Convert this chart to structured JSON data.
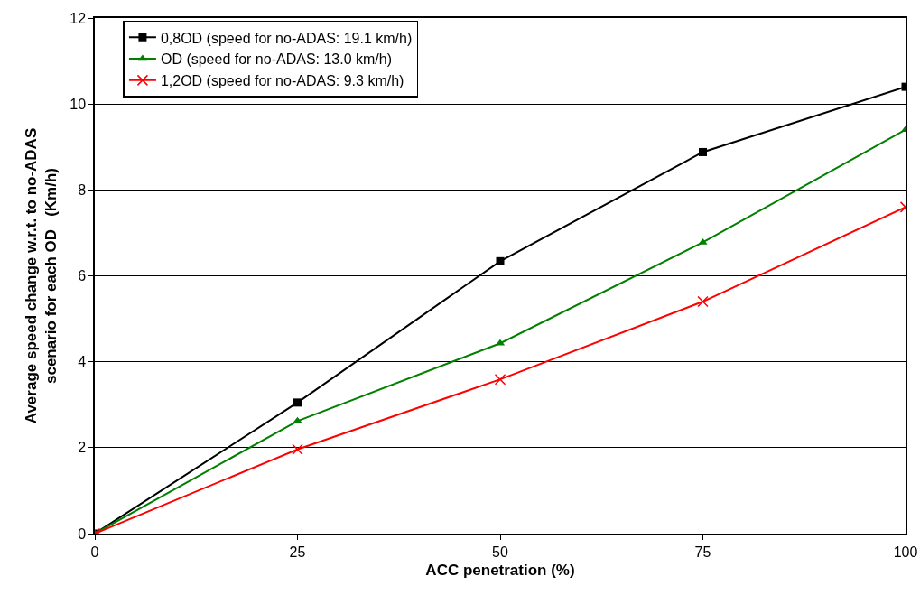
{
  "chart_data": {
    "type": "line",
    "xlabel": "ACC penetration (%)",
    "ylabel": "Average speed change w.r.t. to no-ADAS scenario for each OD   (Km/h)",
    "x": [
      0,
      25,
      50,
      75,
      100
    ],
    "xlim": [
      0,
      100
    ],
    "xticks": [
      0,
      25,
      50,
      75,
      100
    ],
    "ylim": [
      0,
      12
    ],
    "yticks": [
      0,
      2,
      4,
      6,
      8,
      10,
      12
    ],
    "grid": "y",
    "legend": "top left",
    "series": [
      {
        "name": "0,8OD (speed for no-ADAS: 19.1 km/h)",
        "color": "#000000",
        "marker": "square",
        "values": [
          0,
          3.05,
          6.34,
          8.88,
          10.4
        ]
      },
      {
        "name": "OD (speed for no-ADAS: 13.0 km/h)",
        "color": "#008000",
        "marker": "triangle",
        "values": [
          0,
          2.62,
          4.43,
          6.78,
          9.4
        ]
      },
      {
        "name": "1,2OD (speed for no-ADAS: 9.3 km/h)",
        "color": "#ff0000",
        "marker": "cross",
        "values": [
          0,
          1.96,
          3.59,
          5.4,
          7.6
        ]
      }
    ]
  }
}
